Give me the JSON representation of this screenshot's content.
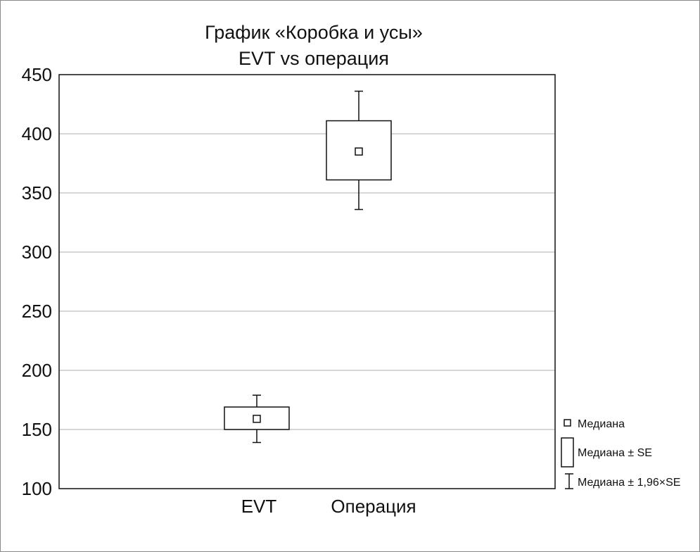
{
  "chart_data": {
    "type": "box",
    "title": "График «Коробка и усы»",
    "subtitle": "EVT vs операция",
    "xlabel": "",
    "ylabel": "",
    "ylim": [
      100,
      450
    ],
    "yticks": [
      100,
      150,
      200,
      250,
      300,
      350,
      400,
      450
    ],
    "grid": true,
    "categories": [
      "EVT",
      "Операция"
    ],
    "boxes": [
      {
        "category": "EVT",
        "median": 159,
        "se_low": 150,
        "se_high": 169,
        "ci_low": 139,
        "ci_high": 179
      },
      {
        "category": "Операция",
        "median": 385,
        "se_low": 361,
        "se_high": 411,
        "ci_low": 336,
        "ci_high": 436
      }
    ],
    "legend": {
      "position": "right",
      "items": [
        {
          "symbol": "median",
          "label": "Медиана"
        },
        {
          "symbol": "box",
          "label": "Медиана ± SE"
        },
        {
          "symbol": "whisker",
          "label": "Медиана ± 1,96×SE"
        }
      ]
    }
  }
}
